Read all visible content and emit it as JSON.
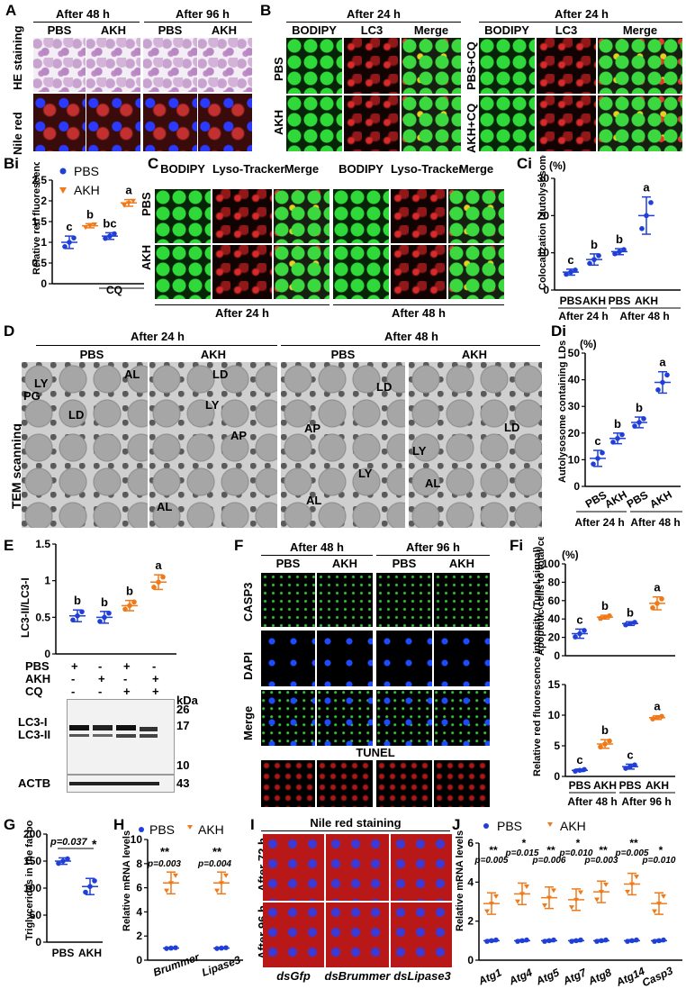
{
  "panels": {
    "A": {
      "label": "A",
      "time1": "After 48 h",
      "time2": "After 96 h",
      "cols": [
        "PBS",
        "AKH",
        "PBS",
        "AKH"
      ],
      "rows": [
        "HE staining",
        "Nile red"
      ]
    },
    "B": {
      "label": "B",
      "time1": "After 24 h",
      "time2": "After 24 h",
      "cols": [
        "BODIPY",
        "LC3",
        "Merge",
        "BODIPY",
        "LC3",
        "Merge"
      ],
      "rows_left": [
        "PBS",
        "AKH"
      ],
      "rows_right": [
        "PBS+CQ",
        "AKH+CQ"
      ]
    },
    "Bi": {
      "label": "Bi",
      "ylabel": "Relative red fluorescence intensity (LC3 signal)",
      "legend": [
        "PBS",
        "AKH"
      ],
      "xlabel": "CQ",
      "letters": [
        "c",
        "b",
        "bc",
        "a"
      ]
    },
    "C": {
      "label": "C",
      "cols": [
        "BODIPY",
        "Lyso-Tracker",
        "Merge",
        "BODIPY",
        "Lyso-Tracker",
        "Merge"
      ],
      "rows": [
        "PBS",
        "AKH"
      ],
      "time1": "After 24 h",
      "time2": "After 48 h"
    },
    "Ci": {
      "label": "Ci",
      "unit": "(%)",
      "ylabel": "Colocalization (autolysosome/LD)",
      "letters": [
        "c",
        "b",
        "b",
        "a"
      ],
      "xt": [
        "PBS",
        "AKH",
        "PBS",
        "AKH"
      ],
      "groups": [
        "After 24 h",
        "After 48 h"
      ]
    },
    "D": {
      "label": "D",
      "time1": "After 24 h",
      "time2": "After 48 h",
      "cols": [
        "PBS",
        "AKH",
        "PBS",
        "AKH"
      ],
      "side": "TEM scanning",
      "ann1": [
        "LY",
        "AL",
        "PG",
        "LD"
      ],
      "ann2": [
        "LD",
        "LY",
        "AP",
        "AL"
      ],
      "ann3": [
        "LD",
        "AP",
        "LY",
        "AL"
      ],
      "ann4": [
        "LY",
        "LD",
        "AL"
      ]
    },
    "Di": {
      "label": "Di",
      "unit": "(%)",
      "ylabel": "Autolysosome containing LDs",
      "letters": [
        "c",
        "b",
        "b",
        "a"
      ],
      "xt": [
        "PBS",
        "AKH",
        "PBS",
        "AKH"
      ],
      "groups": [
        "After 24 h",
        "After 48 h"
      ]
    },
    "E": {
      "label": "E",
      "ylabel": "LC3-II/LC3-I",
      "letters": [
        "b",
        "b",
        "b",
        "a"
      ],
      "rowlabels": [
        "PBS",
        "AKH",
        "CQ"
      ],
      "signs": [
        [
          "+",
          "-",
          "+",
          "-"
        ],
        [
          "-",
          "+",
          "-",
          "+"
        ],
        [
          "-",
          "-",
          "+",
          "+"
        ]
      ],
      "kda": "kDa",
      "markers": [
        "26",
        "17",
        "10",
        "43"
      ],
      "bands": [
        "LC3-I",
        "LC3-II",
        "ACTB"
      ]
    },
    "F": {
      "label": "F",
      "time1": "After 48 h",
      "time2": "After 96 h",
      "cols": [
        "PBS",
        "AKH",
        "PBS",
        "AKH"
      ],
      "rows": [
        "CASP3",
        "DAPI",
        "Merge"
      ],
      "tunel": "TUNEL"
    },
    "Fi": {
      "label": "Fi",
      "unit": "(%)",
      "ylabel1": "Apoptotic cells to total cells",
      "ylabel2": "Relative red fluorescence intensity (Tunel signal)",
      "letters1": [
        "c",
        "b",
        "b",
        "a"
      ],
      "letters2": [
        "c",
        "b",
        "c",
        "a"
      ],
      "xt": [
        "PBS",
        "AKH",
        "PBS",
        "AKH"
      ],
      "groups": [
        "After 48 h",
        "After 96 h"
      ]
    },
    "G": {
      "label": "G",
      "ylabel": "Triglycerides in the fat body (mg/g)",
      "p": "p=0.037",
      "star": "*",
      "xt": [
        "PBS",
        "AKH"
      ]
    },
    "H": {
      "label": "H",
      "ylabel": "Relative mRNA levels",
      "legend": [
        "PBS",
        "AKH"
      ],
      "stars": "**",
      "p": [
        "p=0.003",
        "p=0.004"
      ],
      "genes": [
        "Brummer",
        "Lipase3"
      ]
    },
    "I": {
      "label": "I",
      "title": "Nile red staining",
      "rows": [
        "After 72 h",
        "After 96 h"
      ],
      "cols": [
        "dsGfp",
        "dsBrummer",
        "dsLipase3"
      ]
    },
    "J": {
      "label": "J",
      "ylabel": "Relative mRNA levels",
      "legend": [
        "PBS",
        "AKH"
      ],
      "genes": [
        "Atg1",
        "Atg4",
        "Atg5",
        "Atg7",
        "Atg8",
        "Atg14",
        "Casp3"
      ],
      "stars": [
        "**",
        "*",
        "**",
        "*",
        "**",
        "**",
        "*"
      ],
      "p": [
        "p=0.005",
        "p=0.015",
        "p=0.006",
        "p=0.010",
        "p=0.003",
        "p=0.005",
        "p=0.010"
      ]
    }
  },
  "chart_data": [
    {
      "type": "scatter",
      "title": "",
      "ylabel": "Relative red fluorescence intensity (LC3 signal)",
      "ylim": [
        0,
        2.5
      ],
      "categories": [
        "PBS",
        "AKH",
        "PBS+CQ",
        "AKH+CQ"
      ],
      "values": [
        1.0,
        1.4,
        1.15,
        1.95
      ]
    },
    {
      "type": "scatter",
      "ylabel": "Colocalization (autolysosome/LD)",
      "ylim": [
        0,
        30
      ],
      "categories": [
        "PBS 24h",
        "AKH 24h",
        "PBS 48h",
        "AKH 48h"
      ],
      "values": [
        4.8,
        8.2,
        10.3,
        20
      ]
    },
    {
      "type": "scatter",
      "ylabel": "Autolysosome containing LDs",
      "ylim": [
        0,
        50
      ],
      "categories": [
        "PBS 24h",
        "AKH 24h",
        "PBS 48h",
        "AKH 48h"
      ],
      "values": [
        10.5,
        18,
        24,
        39
      ]
    },
    {
      "type": "scatter",
      "ylabel": "LC3-II/LC3-I",
      "ylim": [
        0,
        1.5
      ],
      "categories": [
        "PBS",
        "AKH",
        "PBS+CQ",
        "AKH+CQ"
      ],
      "values": [
        0.52,
        0.5,
        0.66,
        0.98
      ]
    },
    {
      "type": "scatter",
      "ylabel": "Apoptotic cells to total cells",
      "ylim": [
        0,
        100
      ],
      "categories": [
        "PBS 48h",
        "AKH 48h",
        "PBS 96h",
        "AKH 96h"
      ],
      "values": [
        24,
        42,
        35,
        57
      ]
    },
    {
      "type": "scatter",
      "ylabel": "Relative red fluorescence intensity (Tunel signal)",
      "ylim": [
        0,
        15
      ],
      "categories": [
        "PBS 48h",
        "AKH 48h",
        "PBS 96h",
        "AKH 96h"
      ],
      "values": [
        1,
        5.3,
        1.6,
        9.6
      ]
    },
    {
      "type": "scatter",
      "ylabel": "Triglycerides in the fat body (mg/g)",
      "ylim": [
        0,
        200
      ],
      "categories": [
        "PBS",
        "AKH"
      ],
      "values": [
        150,
        103
      ]
    },
    {
      "type": "scatter",
      "ylabel": "Relative mRNA levels",
      "ylim": [
        0,
        10
      ],
      "categories": [
        "Brummer",
        "Lipase3"
      ],
      "series": [
        {
          "name": "PBS",
          "values": [
            1.0,
            1.0
          ]
        },
        {
          "name": "AKH",
          "values": [
            6.4,
            6.4
          ]
        }
      ]
    },
    {
      "type": "scatter",
      "ylabel": "Relative mRNA levels",
      "ylim": [
        0,
        6
      ],
      "categories": [
        "Atg1",
        "Atg4",
        "Atg5",
        "Atg7",
        "Atg8",
        "Atg14",
        "Casp3"
      ],
      "series": [
        {
          "name": "PBS",
          "values": [
            1.0,
            1.0,
            1.0,
            1.0,
            1.0,
            1.0,
            1.0
          ]
        },
        {
          "name": "AKH",
          "values": [
            2.9,
            3.4,
            3.2,
            3.1,
            3.5,
            3.9,
            2.9
          ]
        }
      ]
    }
  ],
  "colors": {
    "pbs": "#1f3fd8",
    "akh": "#f07a1a",
    "scale_yellow": "#f2d200"
  }
}
